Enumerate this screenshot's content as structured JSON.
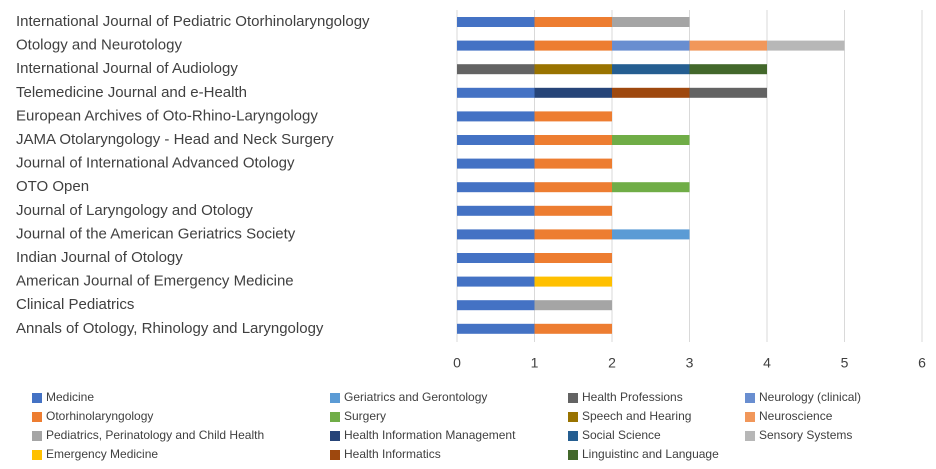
{
  "chart_data": {
    "type": "stacked_bar_horizontal",
    "categories": [
      "International Journal of Pediatric Otorhinolaryngology",
      "Otology and Neurotology",
      "International Journal of Audiology",
      "Telemedicine Journal and e-Health",
      "European Archives of Oto-Rhino-Laryngology",
      "JAMA Otolaryngology - Head and Neck Surgery",
      "Journal of International Advanced Otology",
      "OTO Open",
      "Journal of Laryngology and Otology",
      "Journal of the American Geriatrics Society",
      "Indian Journal of Otology",
      "American Journal of Emergency Medicine",
      "Clinical Pediatrics",
      "Annals of Otology, Rhinology and Laryngology"
    ],
    "series": [
      {
        "name": "Medicine",
        "color": "#4472c4",
        "values": [
          1,
          1,
          null,
          1,
          1,
          1,
          1,
          1,
          1,
          1,
          1,
          1,
          1,
          1
        ]
      },
      {
        "name": "Health Information Management",
        "color": "#264478",
        "values": [
          null,
          null,
          null,
          1,
          null,
          null,
          null,
          null,
          null,
          null,
          null,
          null,
          null,
          null
        ]
      },
      {
        "name": "Health Informatics",
        "color": "#9e480e",
        "values": [
          null,
          null,
          null,
          1,
          null,
          null,
          null,
          null,
          null,
          null,
          null,
          null,
          null,
          null
        ]
      },
      {
        "name": "Health Professions",
        "color": "#636363",
        "values": [
          null,
          null,
          1,
          1,
          null,
          null,
          null,
          null,
          null,
          null,
          null,
          null,
          null,
          null
        ]
      },
      {
        "name": "Speech and Hearing",
        "color": "#997300",
        "values": [
          null,
          null,
          1,
          null,
          null,
          null,
          null,
          null,
          null,
          null,
          null,
          null,
          null,
          null
        ]
      },
      {
        "name": "Social Science",
        "color": "#255e91",
        "values": [
          null,
          null,
          1,
          null,
          null,
          null,
          null,
          null,
          null,
          null,
          null,
          null,
          null,
          null
        ]
      },
      {
        "name": "Linguistinc and Language",
        "color": "#43682b",
        "values": [
          null,
          null,
          1,
          null,
          null,
          null,
          null,
          null,
          null,
          null,
          null,
          null,
          null,
          null
        ]
      },
      {
        "name": "Otorhinolaryngology",
        "color": "#ed7d31",
        "values": [
          1,
          1,
          null,
          null,
          1,
          1,
          1,
          1,
          1,
          1,
          1,
          null,
          null,
          1
        ]
      },
      {
        "name": "Pediatrics, Perinatology and Child Health",
        "color": "#a5a5a5",
        "values": [
          1,
          null,
          null,
          null,
          null,
          null,
          null,
          null,
          null,
          null,
          null,
          null,
          1,
          null
        ]
      },
      {
        "name": "Neurology (clinical)",
        "color": "#698ed0",
        "values": [
          null,
          1,
          null,
          null,
          null,
          null,
          null,
          null,
          null,
          null,
          null,
          null,
          null,
          null
        ]
      },
      {
        "name": "Neuroscience",
        "color": "#f1975a",
        "values": [
          null,
          1,
          null,
          null,
          null,
          null,
          null,
          null,
          null,
          null,
          null,
          null,
          null,
          null
        ]
      },
      {
        "name": "Sensory Systems",
        "color": "#b7b7b7",
        "values": [
          null,
          1,
          null,
          null,
          null,
          null,
          null,
          null,
          null,
          null,
          null,
          null,
          null,
          null
        ]
      },
      {
        "name": "Surgery",
        "color": "#70ad47",
        "values": [
          null,
          null,
          null,
          null,
          null,
          1,
          null,
          1,
          null,
          null,
          null,
          null,
          null,
          null
        ]
      },
      {
        "name": "Geriatrics and Gerontology",
        "color": "#5b9bd5",
        "values": [
          null,
          null,
          null,
          null,
          null,
          null,
          null,
          null,
          null,
          1,
          null,
          null,
          null,
          null
        ]
      },
      {
        "name": "Emergency Medicine",
        "color": "#ffc000",
        "values": [
          null,
          null,
          null,
          null,
          null,
          null,
          null,
          null,
          null,
          null,
          null,
          1,
          null,
          null
        ]
      }
    ],
    "xlim": [
      0,
      6
    ],
    "xticks": [
      0,
      1,
      2,
      3,
      4,
      5,
      6
    ],
    "grid": true,
    "legend": "bottom"
  }
}
